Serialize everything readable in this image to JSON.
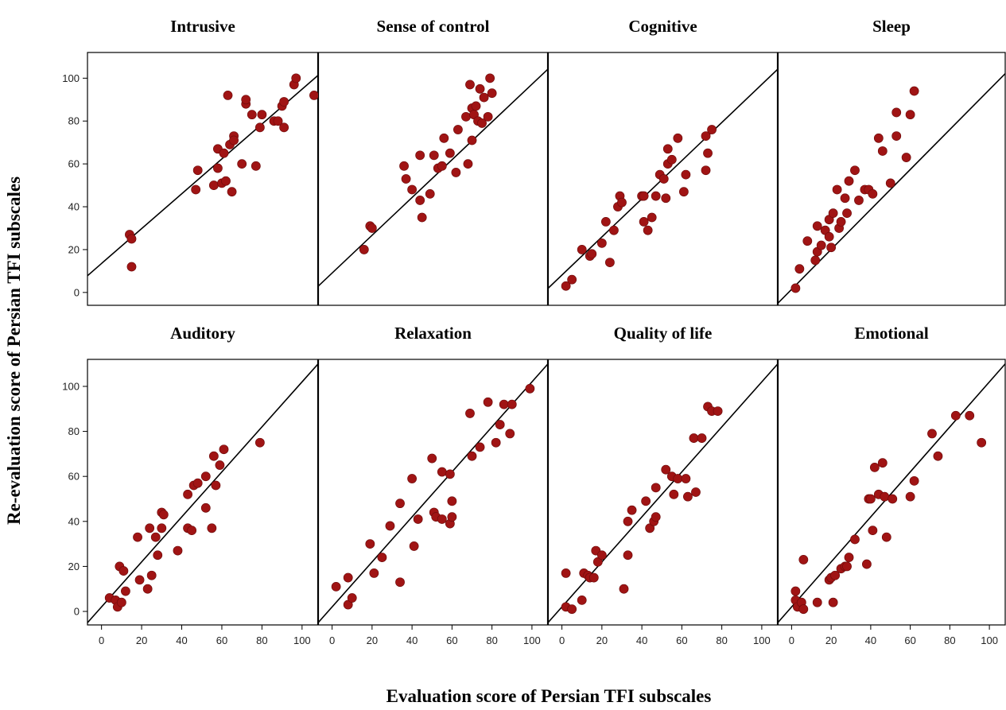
{
  "chart_data": {
    "type": "scatter",
    "ylabel": "Re-evaluation score of Persian TFI subscales",
    "xlabel": "Evaluation score of Persian TFI subscales",
    "xlim": [
      -7,
      108
    ],
    "ylim": [
      -6,
      112
    ],
    "x_ticks": [
      "0",
      "20",
      "40",
      "60",
      "80",
      "100"
    ],
    "y_ticks": [
      "0",
      "20",
      "40",
      "60",
      "80",
      "100"
    ],
    "point_color": "#a01414",
    "panels": [
      {
        "title": "Intrusive",
        "line": [
          [
            -8,
            7
          ],
          [
            110,
            103
          ]
        ],
        "points": [
          [
            14,
            27
          ],
          [
            15,
            25
          ],
          [
            15,
            12
          ],
          [
            47,
            48
          ],
          [
            48,
            57
          ],
          [
            56,
            50
          ],
          [
            58,
            67
          ],
          [
            58,
            58
          ],
          [
            60,
            51
          ],
          [
            61,
            65
          ],
          [
            62,
            52
          ],
          [
            63,
            92
          ],
          [
            64,
            69
          ],
          [
            65,
            47
          ],
          [
            66,
            73
          ],
          [
            66,
            71
          ],
          [
            70,
            60
          ],
          [
            72,
            88
          ],
          [
            72,
            90
          ],
          [
            75,
            83
          ],
          [
            77,
            59
          ],
          [
            79,
            77
          ],
          [
            80,
            83
          ],
          [
            86,
            80
          ],
          [
            88,
            80
          ],
          [
            90,
            87
          ],
          [
            91,
            89
          ],
          [
            91,
            77
          ],
          [
            96,
            97
          ],
          [
            97,
            100
          ],
          [
            106,
            92
          ]
        ]
      },
      {
        "title": "Sense of control",
        "line": [
          [
            -8,
            2
          ],
          [
            110,
            106
          ]
        ],
        "points": [
          [
            16,
            20
          ],
          [
            19,
            31
          ],
          [
            20,
            30
          ],
          [
            36,
            59
          ],
          [
            37,
            53
          ],
          [
            40,
            48
          ],
          [
            44,
            64
          ],
          [
            44,
            43
          ],
          [
            45,
            35
          ],
          [
            49,
            46
          ],
          [
            51,
            64
          ],
          [
            53,
            58
          ],
          [
            55,
            59
          ],
          [
            56,
            72
          ],
          [
            59,
            65
          ],
          [
            62,
            56
          ],
          [
            63,
            76
          ],
          [
            67,
            82
          ],
          [
            68,
            60
          ],
          [
            69,
            97
          ],
          [
            70,
            71
          ],
          [
            70,
            86
          ],
          [
            71,
            83
          ],
          [
            72,
            87
          ],
          [
            73,
            80
          ],
          [
            74,
            95
          ],
          [
            75,
            79
          ],
          [
            76,
            91
          ],
          [
            78,
            82
          ],
          [
            79,
            100
          ],
          [
            80,
            93
          ]
        ]
      },
      {
        "title": "Cognitive",
        "line": [
          [
            -8,
            1
          ],
          [
            110,
            106
          ]
        ],
        "points": [
          [
            2,
            3
          ],
          [
            5,
            6
          ],
          [
            10,
            20
          ],
          [
            14,
            17
          ],
          [
            15,
            18
          ],
          [
            20,
            23
          ],
          [
            22,
            33
          ],
          [
            24,
            14
          ],
          [
            26,
            29
          ],
          [
            28,
            40
          ],
          [
            29,
            45
          ],
          [
            30,
            42
          ],
          [
            40,
            45
          ],
          [
            41,
            33
          ],
          [
            41,
            45
          ],
          [
            43,
            29
          ],
          [
            45,
            35
          ],
          [
            47,
            45
          ],
          [
            49,
            55
          ],
          [
            51,
            53
          ],
          [
            52,
            44
          ],
          [
            53,
            67
          ],
          [
            53,
            60
          ],
          [
            55,
            62
          ],
          [
            58,
            72
          ],
          [
            61,
            47
          ],
          [
            62,
            55
          ],
          [
            72,
            73
          ],
          [
            72,
            57
          ],
          [
            73,
            65
          ],
          [
            75,
            76
          ]
        ]
      },
      {
        "title": "Sleep",
        "line": [
          [
            -8,
            -6
          ],
          [
            110,
            104
          ]
        ],
        "points": [
          [
            2,
            2
          ],
          [
            4,
            11
          ],
          [
            8,
            24
          ],
          [
            12,
            15
          ],
          [
            13,
            31
          ],
          [
            13,
            19
          ],
          [
            15,
            22
          ],
          [
            17,
            29
          ],
          [
            19,
            34
          ],
          [
            19,
            26
          ],
          [
            20,
            21
          ],
          [
            21,
            37
          ],
          [
            23,
            48
          ],
          [
            24,
            30
          ],
          [
            25,
            33
          ],
          [
            27,
            44
          ],
          [
            28,
            37
          ],
          [
            29,
            52
          ],
          [
            32,
            57
          ],
          [
            34,
            43
          ],
          [
            37,
            48
          ],
          [
            39,
            48
          ],
          [
            41,
            46
          ],
          [
            44,
            72
          ],
          [
            46,
            66
          ],
          [
            50,
            51
          ],
          [
            53,
            84
          ],
          [
            53,
            73
          ],
          [
            58,
            63
          ],
          [
            60,
            83
          ],
          [
            62,
            94
          ]
        ]
      },
      {
        "title": "Auditory",
        "line": [
          [
            -8,
            -6
          ],
          [
            110,
            112
          ]
        ],
        "points": [
          [
            4,
            6
          ],
          [
            7,
            5
          ],
          [
            8,
            2
          ],
          [
            9,
            20
          ],
          [
            10,
            4
          ],
          [
            11,
            18
          ],
          [
            12,
            9
          ],
          [
            18,
            33
          ],
          [
            19,
            14
          ],
          [
            23,
            10
          ],
          [
            24,
            37
          ],
          [
            25,
            16
          ],
          [
            27,
            33
          ],
          [
            28,
            25
          ],
          [
            30,
            37
          ],
          [
            30,
            44
          ],
          [
            31,
            43
          ],
          [
            38,
            27
          ],
          [
            43,
            52
          ],
          [
            43,
            37
          ],
          [
            45,
            36
          ],
          [
            46,
            56
          ],
          [
            48,
            57
          ],
          [
            52,
            46
          ],
          [
            52,
            60
          ],
          [
            55,
            37
          ],
          [
            56,
            69
          ],
          [
            57,
            56
          ],
          [
            59,
            65
          ],
          [
            61,
            72
          ],
          [
            79,
            75
          ]
        ]
      },
      {
        "title": "Relaxation",
        "line": [
          [
            -8,
            -6
          ],
          [
            110,
            112
          ]
        ],
        "points": [
          [
            2,
            11
          ],
          [
            8,
            15
          ],
          [
            8,
            3
          ],
          [
            10,
            6
          ],
          [
            19,
            30
          ],
          [
            21,
            17
          ],
          [
            25,
            24
          ],
          [
            29,
            38
          ],
          [
            34,
            48
          ],
          [
            34,
            13
          ],
          [
            40,
            59
          ],
          [
            41,
            29
          ],
          [
            43,
            41
          ],
          [
            50,
            68
          ],
          [
            51,
            44
          ],
          [
            52,
            42
          ],
          [
            55,
            62
          ],
          [
            55,
            41
          ],
          [
            59,
            61
          ],
          [
            59,
            39
          ],
          [
            60,
            49
          ],
          [
            60,
            42
          ],
          [
            69,
            88
          ],
          [
            70,
            69
          ],
          [
            74,
            73
          ],
          [
            78,
            93
          ],
          [
            82,
            75
          ],
          [
            84,
            83
          ],
          [
            86,
            92
          ],
          [
            89,
            79
          ],
          [
            90,
            92
          ],
          [
            99,
            99
          ]
        ]
      },
      {
        "title": "Quality of life",
        "line": [
          [
            -8,
            -6
          ],
          [
            110,
            112
          ]
        ],
        "points": [
          [
            2,
            17
          ],
          [
            2,
            2
          ],
          [
            5,
            1
          ],
          [
            10,
            5
          ],
          [
            11,
            17
          ],
          [
            13,
            16
          ],
          [
            14,
            15
          ],
          [
            16,
            15
          ],
          [
            17,
            27
          ],
          [
            18,
            22
          ],
          [
            20,
            25
          ],
          [
            31,
            10
          ],
          [
            33,
            25
          ],
          [
            33,
            40
          ],
          [
            35,
            45
          ],
          [
            42,
            49
          ],
          [
            44,
            37
          ],
          [
            46,
            40
          ],
          [
            47,
            55
          ],
          [
            47,
            42
          ],
          [
            52,
            63
          ],
          [
            55,
            60
          ],
          [
            56,
            52
          ],
          [
            58,
            59
          ],
          [
            62,
            59
          ],
          [
            63,
            51
          ],
          [
            66,
            77
          ],
          [
            67,
            53
          ],
          [
            70,
            77
          ],
          [
            73,
            91
          ],
          [
            75,
            89
          ],
          [
            78,
            89
          ]
        ]
      },
      {
        "title": "Emotional",
        "line": [
          [
            -8,
            -6
          ],
          [
            110,
            112
          ]
        ],
        "points": [
          [
            2,
            9
          ],
          [
            2,
            5
          ],
          [
            3,
            2
          ],
          [
            5,
            4
          ],
          [
            6,
            23
          ],
          [
            6,
            1
          ],
          [
            13,
            4
          ],
          [
            19,
            14
          ],
          [
            20,
            15
          ],
          [
            21,
            4
          ],
          [
            22,
            16
          ],
          [
            25,
            19
          ],
          [
            27,
            20
          ],
          [
            28,
            20
          ],
          [
            29,
            24
          ],
          [
            32,
            32
          ],
          [
            38,
            21
          ],
          [
            39,
            50
          ],
          [
            40,
            50
          ],
          [
            41,
            36
          ],
          [
            42,
            64
          ],
          [
            44,
            52
          ],
          [
            46,
            66
          ],
          [
            47,
            51
          ],
          [
            48,
            33
          ],
          [
            51,
            50
          ],
          [
            60,
            51
          ],
          [
            62,
            58
          ],
          [
            71,
            79
          ],
          [
            74,
            69
          ],
          [
            83,
            87
          ],
          [
            90,
            87
          ],
          [
            96,
            75
          ]
        ]
      }
    ]
  }
}
